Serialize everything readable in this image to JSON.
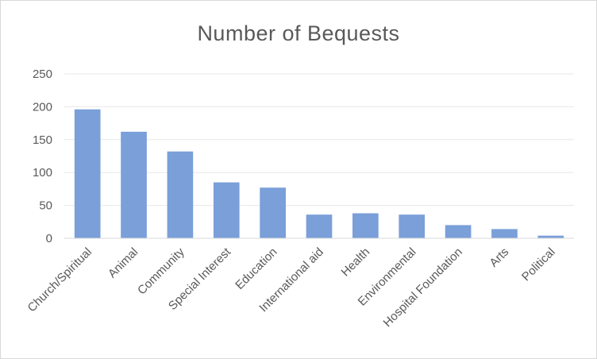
{
  "chart_data": {
    "type": "bar",
    "title": "Number of Bequests",
    "xlabel": "",
    "ylabel": "",
    "categories": [
      "Church/Spiritual",
      "Animal",
      "Community",
      "Special Interest",
      "Education",
      "International aid",
      "Health",
      "Environmental",
      "Hospital Foundation",
      "Arts",
      "Political"
    ],
    "values": [
      196,
      162,
      132,
      85,
      77,
      36,
      38,
      36,
      20,
      14,
      4
    ],
    "ylim": [
      0,
      250
    ],
    "yticks": [
      0,
      50,
      100,
      150,
      200,
      250
    ],
    "grid": true,
    "legend": "none",
    "bar_color": "#7a9fd9",
    "grid_color": "#e8e8e8",
    "axis_color": "#d9d9d9",
    "text_color": "#595959"
  }
}
